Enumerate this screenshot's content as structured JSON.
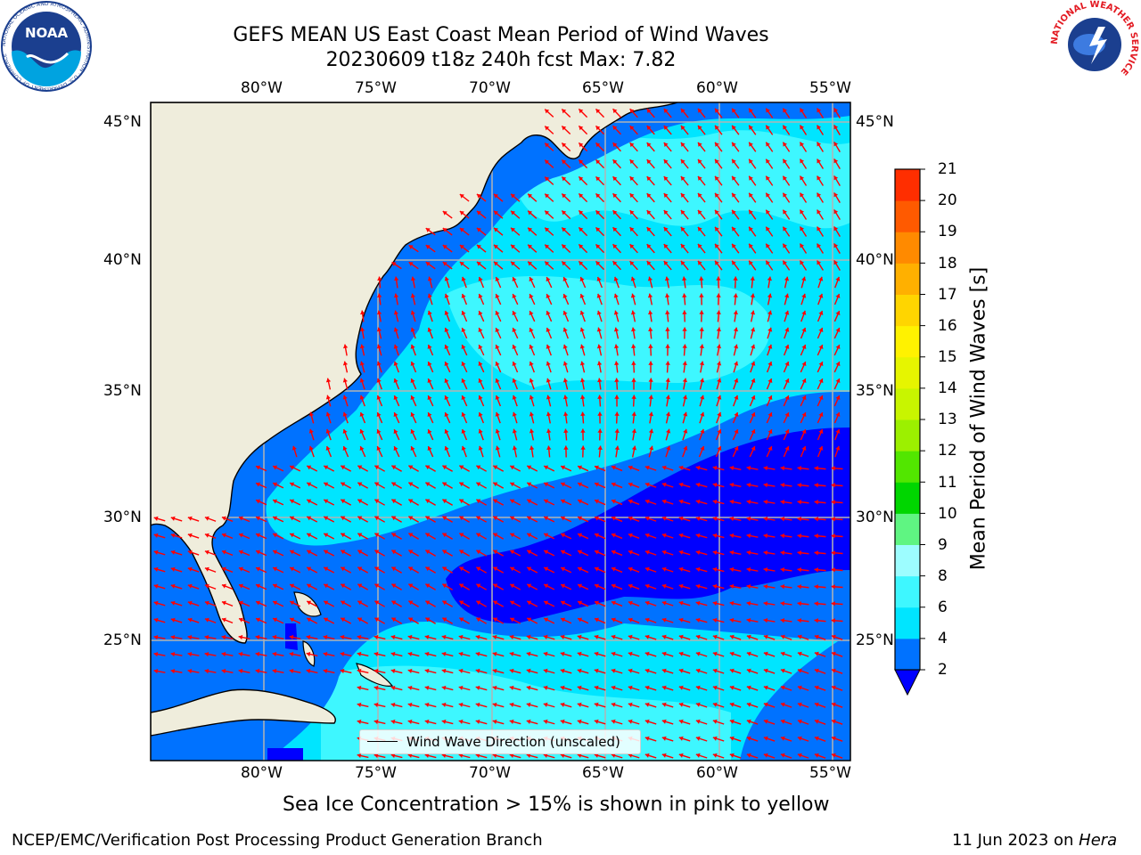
{
  "title": {
    "line1": "GEFS MEAN US East Coast Mean Period of Wind Waves",
    "line2": "20230609 t18z 240h fcst   Max: 7.82"
  },
  "logos": {
    "noaa_text": "NOAA",
    "noaa_ring": "NATIONAL OCEANIC AND ATMOSPHERIC ADMINISTRATION · U.S. DEPARTMENT OF COMMERCE",
    "nws_ring": "NATIONAL WEATHER SERVICE"
  },
  "axes": {
    "lon_labels": [
      "80°W",
      "75°W",
      "70°W",
      "65°W",
      "60°W",
      "55°W"
    ],
    "lat_labels": [
      "45°N",
      "40°N",
      "35°N",
      "30°N",
      "25°N"
    ]
  },
  "legend": {
    "label": "Wind Wave Direction (unscaled)"
  },
  "colorbar": {
    "title": "Mean Period of Wind Waves [s]",
    "ticks": [
      "2",
      "4",
      "6",
      "8",
      "9",
      "10",
      "11",
      "12",
      "13",
      "14",
      "15",
      "16",
      "17",
      "18",
      "19",
      "20",
      "21"
    ],
    "colors": [
      "#0072ff",
      "#00e5ff",
      "#3ef7ff",
      "#9dfdff",
      "#5ff582",
      "#00d600",
      "#52e600",
      "#9cf000",
      "#c8f500",
      "#e6f500",
      "#fff200",
      "#ffd500",
      "#ffb000",
      "#ff8a00",
      "#ff5a00",
      "#ff2e00"
    ],
    "under_color": "#0000ff",
    "highlight_color": "#ff0000"
  },
  "map_colors": {
    "land": "#efeddc",
    "band_2_4": "#0072ff",
    "band_4_6": "#00e5ff",
    "band_6_8": "#3ef7ff",
    "under_2": "#0000ff",
    "arrow": "#ff0000",
    "grid": "#b3b3b3"
  },
  "caption": "Sea Ice Concentration > 15% is shown in pink to yellow",
  "footer": {
    "left": "NCEP/EMC/Verification Post Processing Product Generation Branch",
    "right_date": "11 Jun 2023 on ",
    "right_machine": "Hera"
  }
}
